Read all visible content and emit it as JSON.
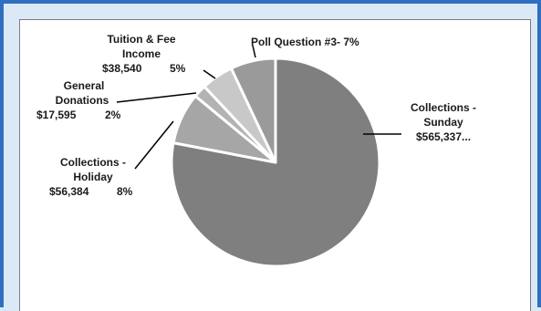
{
  "chart_data": {
    "type": "pie",
    "colors": {
      "collections_sunday": "#7f7f7f",
      "collections_holiday": "#a6a6a6",
      "general_donations": "#b3b3b3",
      "tuition_fee_income": "#c8c8c8",
      "poll_question_3": "#9a9a9a",
      "separator": "#ffffff",
      "frame": "#2f6fbf",
      "background": "#dbe9f7"
    },
    "slices": [
      {
        "key": "collections_sunday",
        "name": "Collections - Sunday",
        "value": 565337,
        "percent": 78
      },
      {
        "key": "collections_holiday",
        "name": "Collections - Holiday",
        "value": 56384,
        "percent": 8
      },
      {
        "key": "general_donations",
        "name": "General Donations",
        "value": 17595,
        "percent": 2
      },
      {
        "key": "tuition_fee_income",
        "name": "Tuition & Fee Income",
        "value": 38540,
        "percent": 5
      },
      {
        "key": "poll_question_3",
        "name": "Poll Question #3",
        "percent": 7
      }
    ],
    "labels": {
      "collections_sunday": [
        "Collections -",
        "Sunday",
        "$565,337..."
      ],
      "collections_holiday": [
        "Collections -",
        "Holiday",
        "$56,384",
        "8%"
      ],
      "general_donations": [
        "General",
        "Donations",
        "$17,595",
        "2%"
      ],
      "tuition_fee_income": [
        "Tuition & Fee",
        "Income",
        "$38,540",
        "5%"
      ],
      "poll_question_3": [
        "Poll Question #3- 7%"
      ]
    }
  }
}
